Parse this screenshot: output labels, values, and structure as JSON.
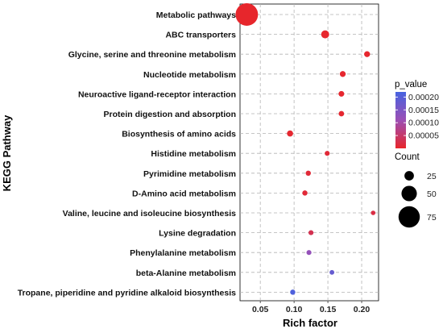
{
  "chart_data": {
    "type": "scatter",
    "title": "",
    "xlabel": "Rich factor",
    "ylabel": "KEGG Pathway",
    "xlim": [
      0.02,
      0.225
    ],
    "x_ticks": [
      0.05,
      0.1,
      0.15,
      0.2
    ],
    "x_tick_labels": [
      "0.05",
      "0.10",
      "0.15",
      "0.20"
    ],
    "grid": true,
    "color_legend": {
      "title": "p_value",
      "range": [
        0.0,
        0.00022
      ],
      "ticks": [
        0.0002,
        0.00015,
        0.0001,
        5e-05
      ],
      "tick_labels": [
        "0.00020",
        "0.00015",
        "0.00010",
        "0.00005"
      ],
      "low_color": "#e8262b",
      "high_color": "#4763e0"
    },
    "size_legend": {
      "title": "Count",
      "values": [
        25,
        50,
        75
      ],
      "labels": [
        "25",
        "50",
        "75"
      ]
    },
    "points": [
      {
        "pathway": "Metabolic pathways",
        "rich_factor": 0.03,
        "count": 80,
        "p_value": 1e-06
      },
      {
        "pathway": "ABC transporters",
        "rich_factor": 0.146,
        "count": 19,
        "p_value": 2e-06
      },
      {
        "pathway": "Glycine, serine and threonine metabolism",
        "rich_factor": 0.208,
        "count": 10,
        "p_value": 2e-06
      },
      {
        "pathway": "Nucleotide metabolism",
        "rich_factor": 0.172,
        "count": 10,
        "p_value": 3e-06
      },
      {
        "pathway": "Neuroactive ligand-receptor interaction",
        "rich_factor": 0.17,
        "count": 9,
        "p_value": 3e-06
      },
      {
        "pathway": "Protein digestion and absorption",
        "rich_factor": 0.17,
        "count": 8,
        "p_value": 4e-06
      },
      {
        "pathway": "Biosynthesis of amino acids",
        "rich_factor": 0.094,
        "count": 11,
        "p_value": 5e-06
      },
      {
        "pathway": "Histidine metabolism",
        "rich_factor": 0.149,
        "count": 6,
        "p_value": 1e-05
      },
      {
        "pathway": "Pyrimidine metabolism",
        "rich_factor": 0.121,
        "count": 7,
        "p_value": 1e-05
      },
      {
        "pathway": "D-Amino acid metabolism",
        "rich_factor": 0.116,
        "count": 7,
        "p_value": 1e-05
      },
      {
        "pathway": "Valine, leucine and isoleucine biosynthesis",
        "rich_factor": 0.217,
        "count": 4,
        "p_value": 2e-05
      },
      {
        "pathway": "Lysine degradation",
        "rich_factor": 0.125,
        "count": 6,
        "p_value": 3e-05
      },
      {
        "pathway": "Phenylalanine metabolism",
        "rich_factor": 0.122,
        "count": 6,
        "p_value": 0.00012
      },
      {
        "pathway": "beta-Alanine metabolism",
        "rich_factor": 0.156,
        "count": 5,
        "p_value": 0.00018
      },
      {
        "pathway": "Tropane, piperidine and pyridine alkaloid biosynthesis",
        "rich_factor": 0.098,
        "count": 7,
        "p_value": 0.00021
      }
    ]
  }
}
